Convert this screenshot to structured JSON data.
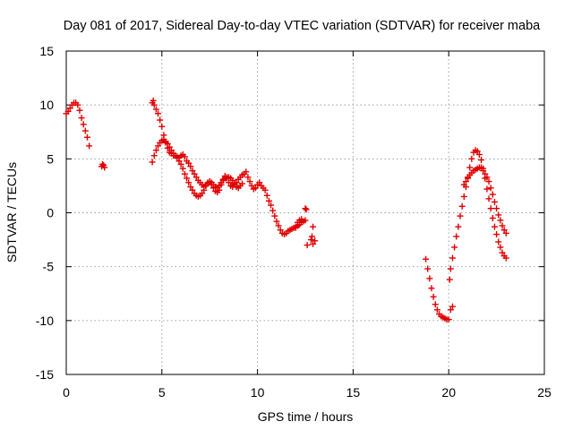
{
  "chart_data": {
    "type": "scatter",
    "title": "Day 081 of 2017, Sidereal Day-to-day VTEC variation (SDTVAR) for receiver maba",
    "xlabel": "GPS time / hours",
    "ylabel": "SDTVAR / TECUs",
    "xlim": [
      0,
      25
    ],
    "ylim": [
      -15,
      15
    ],
    "xticks": [
      "0",
      "5",
      "10",
      "15",
      "20",
      "25"
    ],
    "yticks": [
      "15",
      "10",
      "5",
      "0",
      "-5",
      "-10",
      "-15"
    ],
    "grid": true,
    "marker": "plus",
    "color": "#e00000",
    "series": [
      {
        "name": "SDTVAR",
        "x": [
          0.0,
          0.1,
          0.2,
          0.3,
          0.4,
          0.5,
          0.6,
          0.7,
          0.8,
          0.9,
          1.0,
          1.1,
          1.2,
          1.85,
          1.9,
          1.95,
          2.0,
          4.5,
          4.55,
          4.6,
          4.7,
          4.8,
          4.9,
          5.0,
          5.1,
          5.2,
          5.3,
          5.4,
          5.5,
          5.6,
          5.7,
          5.8,
          5.9,
          6.0,
          6.1,
          6.2,
          6.3,
          6.4,
          6.5,
          6.6,
          6.7,
          6.8,
          6.9,
          7.0,
          7.1,
          7.2,
          7.3,
          7.4,
          7.5,
          7.6,
          7.7,
          7.8,
          7.9,
          8.0,
          8.1,
          8.2,
          8.3,
          8.4,
          8.5,
          8.6,
          8.7,
          8.8,
          8.9,
          9.0,
          9.1,
          9.2,
          9.3,
          9.4,
          9.5,
          9.6,
          9.7,
          9.8,
          9.9,
          10.0,
          10.1,
          10.2,
          10.3,
          10.4,
          10.5,
          10.6,
          10.7,
          10.8,
          10.9,
          11.0,
          11.1,
          11.2,
          11.3,
          11.4,
          11.5,
          11.6,
          11.7,
          11.8,
          11.9,
          12.0,
          12.1,
          12.2,
          12.3,
          12.4,
          12.5,
          4.5,
          4.6,
          4.7,
          4.8,
          4.9,
          5.0,
          5.1,
          5.2,
          5.3,
          5.4,
          5.5,
          5.6,
          5.7,
          5.8,
          5.9,
          6.0,
          6.1,
          6.2,
          6.3,
          6.4,
          6.5,
          6.6,
          6.7,
          6.8,
          6.9,
          7.0,
          7.1,
          7.2,
          7.3,
          7.4,
          7.5,
          7.6,
          7.7,
          7.8,
          7.9,
          8.0,
          8.1,
          8.2,
          8.3,
          8.4,
          8.5,
          8.6,
          8.7,
          8.8,
          8.9,
          9.0,
          9.1,
          9.2,
          12.0,
          12.1,
          12.2,
          12.3,
          12.5,
          12.55,
          12.6,
          12.8,
          12.85,
          12.9,
          12.9,
          13.0,
          18.8,
          18.9,
          19.0,
          19.1,
          19.2,
          19.3,
          19.4,
          19.5,
          19.6,
          19.7,
          19.8,
          19.9,
          20.0,
          20.1,
          20.2,
          20.05,
          20.1,
          20.2,
          20.3,
          20.4,
          20.5,
          20.6,
          20.7,
          20.8,
          20.9,
          21.0,
          21.1,
          21.2,
          21.3,
          21.4,
          21.5,
          21.6,
          21.7,
          21.8,
          21.9,
          22.0,
          22.1,
          22.2,
          22.3,
          22.4,
          22.5,
          22.6,
          22.7,
          22.8,
          22.9,
          23.0,
          20.8,
          20.9,
          21.0,
          21.1,
          21.2,
          21.3,
          21.4,
          21.5,
          21.6,
          21.7,
          21.8,
          21.9,
          22.0,
          22.1,
          22.2,
          22.3,
          22.4,
          22.5,
          22.6,
          22.7,
          22.8,
          22.9,
          23.0
        ],
        "y": [
          9.2,
          9.4,
          9.7,
          10.0,
          10.2,
          10.2,
          10.0,
          9.5,
          8.8,
          8.2,
          7.6,
          7.0,
          6.2,
          4.3,
          4.5,
          4.4,
          4.2,
          10.2,
          10.4,
          10.0,
          9.6,
          9.2,
          8.6,
          8.0,
          7.2,
          6.5,
          6.0,
          5.6,
          5.5,
          5.3,
          5.3,
          5.2,
          5.1,
          5.3,
          5.4,
          5.2,
          4.8,
          4.6,
          4.3,
          3.9,
          3.6,
          3.3,
          3.0,
          2.8,
          2.6,
          2.4,
          2.5,
          2.7,
          2.9,
          2.6,
          2.3,
          2.0,
          1.9,
          2.1,
          2.6,
          3.1,
          3.4,
          3.2,
          2.8,
          2.5,
          2.4,
          2.6,
          2.8,
          3.1,
          3.3,
          3.5,
          3.6,
          3.8,
          3.3,
          2.9,
          2.5,
          2.2,
          2.3,
          2.6,
          2.8,
          2.5,
          2.3,
          2.1,
          1.6,
          1.1,
          0.7,
          0.2,
          -0.3,
          -0.8,
          -1.2,
          -1.6,
          -1.9,
          -2.0,
          -1.9,
          -1.7,
          -1.6,
          -1.5,
          -1.4,
          -1.3,
          -1.2,
          -1.1,
          -0.9,
          -0.8,
          -0.7,
          4.7,
          5.3,
          5.8,
          6.2,
          6.5,
          6.7,
          6.8,
          6.6,
          6.4,
          6.1,
          5.8,
          5.5,
          5.3,
          5.1,
          4.8,
          4.5,
          4.1,
          3.6,
          3.2,
          2.8,
          2.4,
          2.1,
          1.8,
          1.6,
          1.5,
          1.6,
          1.8,
          2.1,
          2.5,
          2.8,
          2.9,
          2.8,
          2.6,
          2.4,
          2.3,
          2.5,
          2.8,
          3.0,
          3.2,
          3.3,
          3.3,
          3.2,
          3.0,
          2.7,
          2.4,
          2.3,
          2.5,
          2.7,
          -1.4,
          -0.9,
          -0.7,
          -0.6,
          0.4,
          0.3,
          -3.0,
          -2.5,
          -2.2,
          -1.3,
          -2.9,
          -2.6,
          -4.3,
          -5.2,
          -6.1,
          -7.0,
          -7.8,
          -8.5,
          -9.0,
          -9.4,
          -9.6,
          -9.7,
          -9.8,
          -9.9,
          -9.9,
          -9.0,
          -8.7,
          -6.2,
          -5.2,
          -4.2,
          -3.2,
          -2.2,
          -1.3,
          -0.3,
          0.6,
          1.5,
          2.4,
          3.3,
          4.2,
          5.0,
          5.6,
          5.8,
          5.7,
          5.4,
          4.9,
          4.1,
          3.2,
          2.2,
          1.3,
          0.4,
          -0.5,
          -1.3,
          -2.0,
          -2.7,
          -3.2,
          -3.7,
          -4.0,
          -4.2,
          2.6,
          2.9,
          3.2,
          3.5,
          3.7,
          3.9,
          4.0,
          4.1,
          4.2,
          4.2,
          3.9,
          3.6,
          3.3,
          2.9,
          2.3,
          1.7,
          1.0,
          0.4,
          -0.2,
          -0.7,
          -1.2,
          -1.6,
          -1.9
        ]
      }
    ]
  }
}
